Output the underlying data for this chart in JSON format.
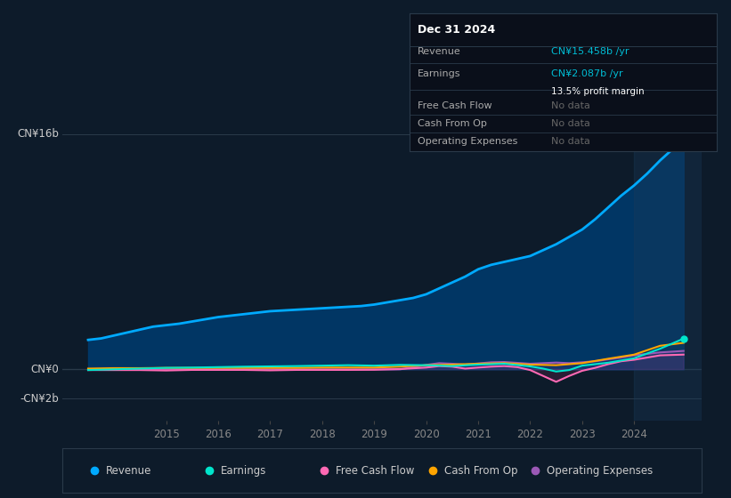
{
  "bg_color": "#0d1b2a",
  "plot_bg_color": "#0d1b2a",
  "grid_color": "#2a3a4a",
  "title_box": {
    "date": "Dec 31 2024",
    "rows": [
      {
        "label": "Revenue",
        "value": "CN¥15.458b /yr",
        "value_color": "#00bcd4",
        "subvalue": null
      },
      {
        "label": "Earnings",
        "value": "CN¥2.087b /yr",
        "value_color": "#00bcd4",
        "subvalue": "13.5% profit margin"
      },
      {
        "label": "Free Cash Flow",
        "value": "No data",
        "value_color": "#666666",
        "subvalue": null
      },
      {
        "label": "Cash From Op",
        "value": "No data",
        "value_color": "#666666",
        "subvalue": null
      },
      {
        "label": "Operating Expenses",
        "value": "No data",
        "value_color": "#666666",
        "subvalue": null
      }
    ],
    "box_bg": "#0a0f1a",
    "box_border": "#2a3a4a",
    "text_color": "#aaaaaa",
    "date_color": "#ffffff"
  },
  "y_labels": [
    "CN¥16b",
    "CN¥0",
    "-CN¥2b"
  ],
  "y_values": [
    16,
    0,
    -2
  ],
  "ylim": [
    -3.5,
    18.5
  ],
  "xlim": [
    2013.0,
    2025.3
  ],
  "x_ticks": [
    2015,
    2016,
    2017,
    2018,
    2019,
    2020,
    2021,
    2022,
    2023,
    2024
  ],
  "legend": [
    {
      "label": "Revenue",
      "color": "#00aaff"
    },
    {
      "label": "Earnings",
      "color": "#00e5cc"
    },
    {
      "label": "Free Cash Flow",
      "color": "#ff69b4"
    },
    {
      "label": "Cash From Op",
      "color": "#ffa500"
    },
    {
      "label": "Operating Expenses",
      "color": "#9b59b6"
    }
  ],
  "revenue": {
    "x": [
      2013.5,
      2013.75,
      2014.0,
      2014.25,
      2014.5,
      2014.75,
      2015.0,
      2015.25,
      2015.5,
      2015.75,
      2016.0,
      2016.25,
      2016.5,
      2016.75,
      2017.0,
      2017.25,
      2017.5,
      2017.75,
      2018.0,
      2018.25,
      2018.5,
      2018.75,
      2019.0,
      2019.25,
      2019.5,
      2019.75,
      2020.0,
      2020.25,
      2020.5,
      2020.75,
      2021.0,
      2021.25,
      2021.5,
      2021.75,
      2022.0,
      2022.25,
      2022.5,
      2022.75,
      2023.0,
      2023.25,
      2023.5,
      2023.75,
      2024.0,
      2024.25,
      2024.5,
      2024.75,
      2024.95
    ],
    "y": [
      2.0,
      2.1,
      2.3,
      2.5,
      2.7,
      2.9,
      3.0,
      3.1,
      3.25,
      3.4,
      3.55,
      3.65,
      3.75,
      3.85,
      3.95,
      4.0,
      4.05,
      4.1,
      4.15,
      4.2,
      4.25,
      4.3,
      4.4,
      4.55,
      4.7,
      4.85,
      5.1,
      5.5,
      5.9,
      6.3,
      6.8,
      7.1,
      7.3,
      7.5,
      7.7,
      8.1,
      8.5,
      9.0,
      9.5,
      10.2,
      11.0,
      11.8,
      12.5,
      13.3,
      14.2,
      15.0,
      15.458
    ],
    "color": "#00aaff",
    "fill_color": "#003a6b",
    "fill_alpha": 0.9
  },
  "earnings": {
    "x": [
      2013.5,
      2014.0,
      2014.5,
      2015.0,
      2015.5,
      2016.0,
      2016.5,
      2017.0,
      2017.5,
      2018.0,
      2018.5,
      2019.0,
      2019.5,
      2020.0,
      2020.5,
      2021.0,
      2021.5,
      2022.0,
      2022.25,
      2022.5,
      2022.75,
      2023.0,
      2023.5,
      2024.0,
      2024.5,
      2024.95
    ],
    "y": [
      -0.05,
      0.0,
      0.05,
      0.1,
      0.12,
      0.15,
      0.18,
      0.2,
      0.22,
      0.25,
      0.28,
      0.25,
      0.3,
      0.28,
      0.22,
      0.32,
      0.38,
      0.2,
      0.05,
      -0.15,
      -0.05,
      0.25,
      0.45,
      0.75,
      1.4,
      2.087
    ],
    "color": "#00e5cc"
  },
  "free_cash_flow": {
    "x": [
      2013.5,
      2014.0,
      2014.5,
      2015.0,
      2015.5,
      2016.0,
      2016.5,
      2017.0,
      2017.5,
      2018.0,
      2018.5,
      2019.0,
      2019.5,
      2020.0,
      2020.25,
      2020.5,
      2020.75,
      2021.0,
      2021.25,
      2021.5,
      2021.75,
      2022.0,
      2022.25,
      2022.5,
      2022.75,
      2023.0,
      2023.25,
      2023.5,
      2023.75,
      2024.0,
      2024.25,
      2024.5,
      2024.95
    ],
    "y": [
      -0.05,
      -0.05,
      -0.05,
      -0.08,
      -0.04,
      -0.04,
      -0.04,
      -0.07,
      -0.04,
      -0.04,
      -0.04,
      -0.03,
      0.02,
      0.12,
      0.22,
      0.18,
      0.05,
      0.12,
      0.18,
      0.22,
      0.15,
      -0.05,
      -0.45,
      -0.85,
      -0.45,
      -0.1,
      0.1,
      0.35,
      0.55,
      0.65,
      0.8,
      0.95,
      1.0
    ],
    "color": "#ff69b4",
    "fill_color": "#cc3377",
    "fill_alpha": 0.15
  },
  "cash_from_op": {
    "x": [
      2013.5,
      2014.0,
      2014.5,
      2015.0,
      2015.5,
      2016.0,
      2016.5,
      2017.0,
      2017.5,
      2018.0,
      2018.5,
      2019.0,
      2019.5,
      2020.0,
      2020.5,
      2021.0,
      2021.5,
      2022.0,
      2022.5,
      2023.0,
      2023.5,
      2024.0,
      2024.5,
      2024.95
    ],
    "y": [
      0.05,
      0.08,
      0.08,
      0.1,
      0.1,
      0.1,
      0.1,
      0.1,
      0.1,
      0.12,
      0.12,
      0.12,
      0.18,
      0.28,
      0.32,
      0.38,
      0.42,
      0.32,
      0.28,
      0.42,
      0.72,
      1.0,
      1.6,
      1.8
    ],
    "color": "#ffa500"
  },
  "operating_expenses": {
    "x": [
      2013.5,
      2014.0,
      2014.5,
      2015.0,
      2015.5,
      2016.0,
      2016.5,
      2017.0,
      2017.5,
      2018.0,
      2018.5,
      2019.0,
      2019.5,
      2020.0,
      2020.25,
      2020.5,
      2020.75,
      2021.0,
      2021.25,
      2021.5,
      2021.75,
      2022.0,
      2022.25,
      2022.5,
      2022.75,
      2023.0,
      2023.25,
      2023.5,
      2023.75,
      2024.0,
      2024.5,
      2024.95
    ],
    "y": [
      0.0,
      0.0,
      0.0,
      0.0,
      0.0,
      0.0,
      0.0,
      0.0,
      0.0,
      0.0,
      0.0,
      0.0,
      0.0,
      0.3,
      0.42,
      0.38,
      0.32,
      0.4,
      0.48,
      0.5,
      0.44,
      0.38,
      0.42,
      0.46,
      0.42,
      0.48,
      0.55,
      0.68,
      0.8,
      0.95,
      1.15,
      1.25
    ],
    "color": "#9b59b6",
    "fill_color": "#6a3a8a",
    "fill_alpha": 0.2
  },
  "highlight_x_start": 2024.0,
  "highlight_x_end": 2025.3,
  "highlight_color": "#1a3a5a",
  "highlight_alpha": 0.35
}
